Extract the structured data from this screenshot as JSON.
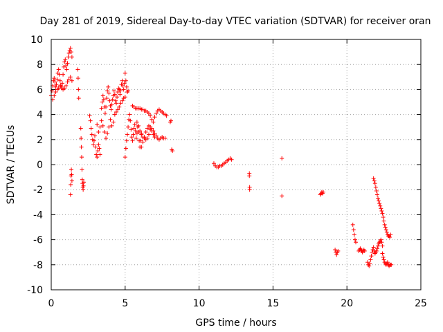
{
  "chart_data": {
    "type": "scatter",
    "title": "Day 281 of 2019, Sidereal Day-to-day VTEC variation (SDTVAR) for receiver oran",
    "xlabel": "GPS time / hours",
    "ylabel": "SDTVAR / TECUs",
    "xlim": [
      0,
      25
    ],
    "ylim": [
      -10,
      10
    ],
    "x_ticks": [
      0,
      5,
      10,
      15,
      20,
      25
    ],
    "y_ticks": [
      -10,
      -8,
      -6,
      -4,
      -2,
      0,
      2,
      4,
      6,
      8,
      10
    ],
    "grid": true,
    "marker": "+",
    "marker_color": "#ff0000",
    "series": [
      {
        "name": "SDTVAR",
        "x": [
          0.0,
          0.05,
          0.1,
          0.15,
          0.2,
          0.25,
          0.3,
          0.35,
          0.4,
          0.45,
          0.5,
          0.55,
          0.6,
          0.65,
          0.7,
          0.75,
          0.8,
          0.85,
          0.9,
          0.95,
          1.0,
          1.05,
          1.1,
          1.15,
          1.2,
          1.25,
          1.3,
          1.35,
          1.4,
          0.1,
          0.2,
          0.3,
          0.4,
          0.5,
          0.6,
          0.7,
          0.8,
          0.9,
          1.0,
          1.1,
          1.2,
          1.3,
          1.4,
          1.3,
          1.32,
          1.34,
          1.36,
          1.38,
          1.4,
          1.8,
          1.82,
          1.84,
          1.86,
          2.0,
          2.02,
          2.04,
          2.06,
          2.08,
          2.1,
          2.12,
          2.14,
          2.16,
          2.18,
          2.2,
          2.6,
          2.65,
          2.7,
          2.75,
          2.8,
          2.85,
          2.9,
          2.95,
          3.0,
          3.05,
          3.1,
          3.15,
          3.2,
          3.25,
          3.3,
          3.4,
          3.45,
          3.5,
          3.55,
          3.6,
          3.65,
          3.7,
          3.75,
          3.8,
          3.85,
          3.9,
          3.95,
          4.0,
          4.05,
          4.1,
          4.15,
          4.2,
          4.25,
          4.3,
          4.35,
          4.4,
          4.45,
          4.5,
          4.55,
          4.6,
          4.65,
          4.7,
          4.75,
          4.8,
          4.85,
          4.9,
          4.95,
          5.0,
          5.05,
          5.1,
          5.15,
          5.2,
          3.1,
          3.2,
          3.3,
          3.4,
          3.5,
          3.6,
          3.7,
          3.8,
          3.9,
          4.0,
          4.1,
          4.2,
          4.3,
          4.4,
          4.5,
          4.6,
          4.7,
          4.8,
          4.9,
          5.0,
          5.0,
          5.05,
          5.1,
          5.15,
          5.2,
          5.25,
          5.3,
          5.35,
          5.4,
          5.45,
          5.5,
          5.55,
          5.6,
          5.65,
          5.7,
          5.75,
          5.8,
          5.85,
          5.9,
          5.95,
          6.0,
          6.05,
          6.1,
          5.5,
          5.6,
          5.7,
          5.8,
          5.9,
          6.0,
          6.1,
          6.2,
          6.3,
          6.4,
          6.5,
          6.6,
          6.7,
          6.8,
          6.9,
          7.0,
          7.1,
          7.2,
          7.3,
          7.4,
          7.5,
          7.6,
          7.7,
          7.8,
          5.8,
          5.9,
          6.0,
          6.1,
          6.2,
          6.3,
          6.4,
          6.5,
          6.6,
          6.7,
          6.8,
          6.9,
          7.0,
          7.1,
          7.2,
          7.3,
          7.4,
          7.5,
          7.6,
          7.7,
          6.1,
          6.2,
          6.3,
          6.4,
          6.5,
          6.6,
          6.7,
          6.8,
          6.9,
          7.0,
          8.05,
          8.1,
          8.15,
          8.2,
          11.0,
          11.1,
          11.2,
          11.3,
          11.4,
          11.5,
          11.6,
          11.7,
          11.8,
          11.9,
          12.0,
          12.1,
          12.2,
          13.4,
          13.4,
          13.42,
          13.42,
          15.6,
          15.6,
          18.2,
          18.25,
          18.3,
          18.35,
          18.4,
          19.2,
          19.25,
          19.3,
          19.35,
          19.4,
          20.4,
          20.45,
          20.5,
          20.55,
          20.6,
          20.8,
          20.85,
          20.9,
          20.95,
          21.0,
          21.05,
          21.1,
          21.15,
          21.2,
          21.4,
          21.45,
          21.5,
          21.55,
          21.6,
          21.65,
          21.7,
          21.75,
          21.8,
          21.85,
          21.9,
          21.95,
          22.0,
          22.05,
          22.1,
          22.15,
          22.2,
          22.25,
          22.3,
          22.35,
          22.4,
          21.8,
          21.85,
          21.9,
          21.95,
          22.0,
          22.05,
          22.1,
          22.15,
          22.2,
          22.25,
          22.3,
          22.35,
          22.4,
          22.45,
          22.5,
          22.55,
          22.6,
          22.65,
          22.7,
          22.75,
          22.8,
          22.85,
          22.9,
          22.95,
          22.4,
          22.45,
          22.5,
          22.55,
          22.6,
          22.65,
          22.7,
          22.75,
          22.8,
          22.85,
          22.9,
          22.95,
          23.0
        ],
        "y": [
          5.5,
          5.9,
          6.3,
          6.7,
          6.9,
          6.6,
          6.2,
          6.4,
          6.8,
          7.3,
          7.6,
          7.2,
          6.7,
          6.3,
          6.1,
          6.5,
          7.2,
          7.8,
          8.2,
          8.4,
          7.9,
          7.6,
          8.1,
          8.6,
          8.9,
          9.1,
          9.3,
          9.0,
          8.6,
          5.2,
          5.5,
          5.8,
          6.0,
          6.1,
          6.3,
          6.2,
          6.0,
          6.1,
          6.3,
          6.6,
          6.8,
          7.0,
          6.7,
          -2.4,
          -1.6,
          -0.9,
          -0.4,
          -0.8,
          -1.3,
          7.6,
          6.9,
          6.0,
          5.3,
          2.9,
          2.1,
          1.4,
          0.6,
          -0.4,
          -1.2,
          -1.5,
          -1.8,
          -2.0,
          -1.7,
          -1.4,
          3.9,
          3.5,
          2.9,
          2.4,
          2.0,
          1.6,
          1.9,
          2.3,
          1.4,
          0.8,
          0.6,
          1.1,
          1.6,
          1.3,
          0.8,
          4.5,
          5.0,
          5.5,
          5.2,
          4.6,
          4.1,
          4.6,
          5.3,
          5.9,
          6.2,
          5.7,
          5.1,
          4.7,
          4.4,
          4.8,
          5.2,
          5.5,
          5.9,
          5.6,
          5.1,
          4.9,
          5.4,
          5.8,
          6.1,
          6.0,
          5.6,
          5.9,
          6.4,
          6.7,
          6.3,
          6.0,
          6.5,
          7.3,
          6.7,
          6.2,
          5.8,
          5.9,
          3.2,
          2.6,
          3.0,
          3.5,
          3.1,
          2.6,
          2.1,
          2.5,
          3.0,
          3.6,
          3.1,
          3.4,
          4.0,
          4.2,
          4.4,
          4.6,
          4.9,
          5.1,
          5.3,
          5.4,
          0.6,
          1.3,
          1.9,
          2.4,
          3.0,
          3.6,
          4.0,
          3.5,
          2.8,
          2.2,
          1.9,
          2.4,
          2.9,
          3.2,
          2.7,
          2.1,
          2.5,
          3.0,
          2.6,
          1.9,
          1.4,
          1.9,
          2.5,
          4.7,
          4.6,
          4.5,
          4.5,
          4.5,
          4.5,
          4.4,
          4.4,
          4.3,
          4.3,
          4.2,
          4.1,
          3.9,
          3.6,
          3.4,
          3.8,
          4.1,
          4.3,
          4.4,
          4.3,
          4.2,
          4.1,
          4.0,
          3.9,
          3.4,
          3.1,
          2.7,
          2.4,
          2.2,
          2.1,
          2.0,
          2.1,
          2.4,
          2.8,
          2.9,
          2.7,
          2.5,
          2.3,
          2.1,
          2.0,
          2.1,
          2.2,
          2.1,
          2.1,
          1.4,
          1.8,
          2.2,
          2.6,
          2.9,
          3.1,
          3.0,
          2.7,
          2.4,
          2.2,
          3.4,
          3.5,
          1.2,
          1.1,
          0.1,
          -0.1,
          -0.2,
          -0.2,
          -0.1,
          -0.1,
          0.0,
          0.1,
          0.2,
          0.3,
          0.4,
          0.5,
          0.4,
          -0.7,
          -0.9,
          -1.8,
          -2.0,
          0.5,
          -2.5,
          -2.4,
          -2.3,
          -2.2,
          -2.3,
          -2.2,
          -6.8,
          -7.0,
          -7.2,
          -7.0,
          -6.9,
          -4.8,
          -5.2,
          -5.6,
          -6.0,
          -6.2,
          -6.9,
          -6.8,
          -6.7,
          -6.8,
          -6.9,
          -7.0,
          -6.9,
          -6.8,
          -6.9,
          -7.8,
          -8.0,
          -8.1,
          -7.9,
          -7.6,
          -7.3,
          -7.0,
          -6.8,
          -6.6,
          -6.9,
          -7.1,
          -7.0,
          -6.9,
          -6.7,
          -6.5,
          -6.3,
          -6.2,
          -6.1,
          -6.0,
          -6.2,
          -6.5,
          -1.1,
          -1.3,
          -1.5,
          -1.8,
          -2.1,
          -2.4,
          -2.7,
          -2.9,
          -3.1,
          -3.3,
          -3.5,
          -3.7,
          -3.9,
          -4.2,
          -4.5,
          -4.8,
          -5.0,
          -5.2,
          -5.4,
          -5.6,
          -5.7,
          -5.7,
          -5.8,
          -5.6,
          -7.1,
          -7.4,
          -7.6,
          -7.8,
          -7.9,
          -8.0,
          -7.9,
          -7.8,
          -8.0,
          -8.1,
          -8.0,
          -8.0,
          -8.0
        ]
      }
    ]
  }
}
